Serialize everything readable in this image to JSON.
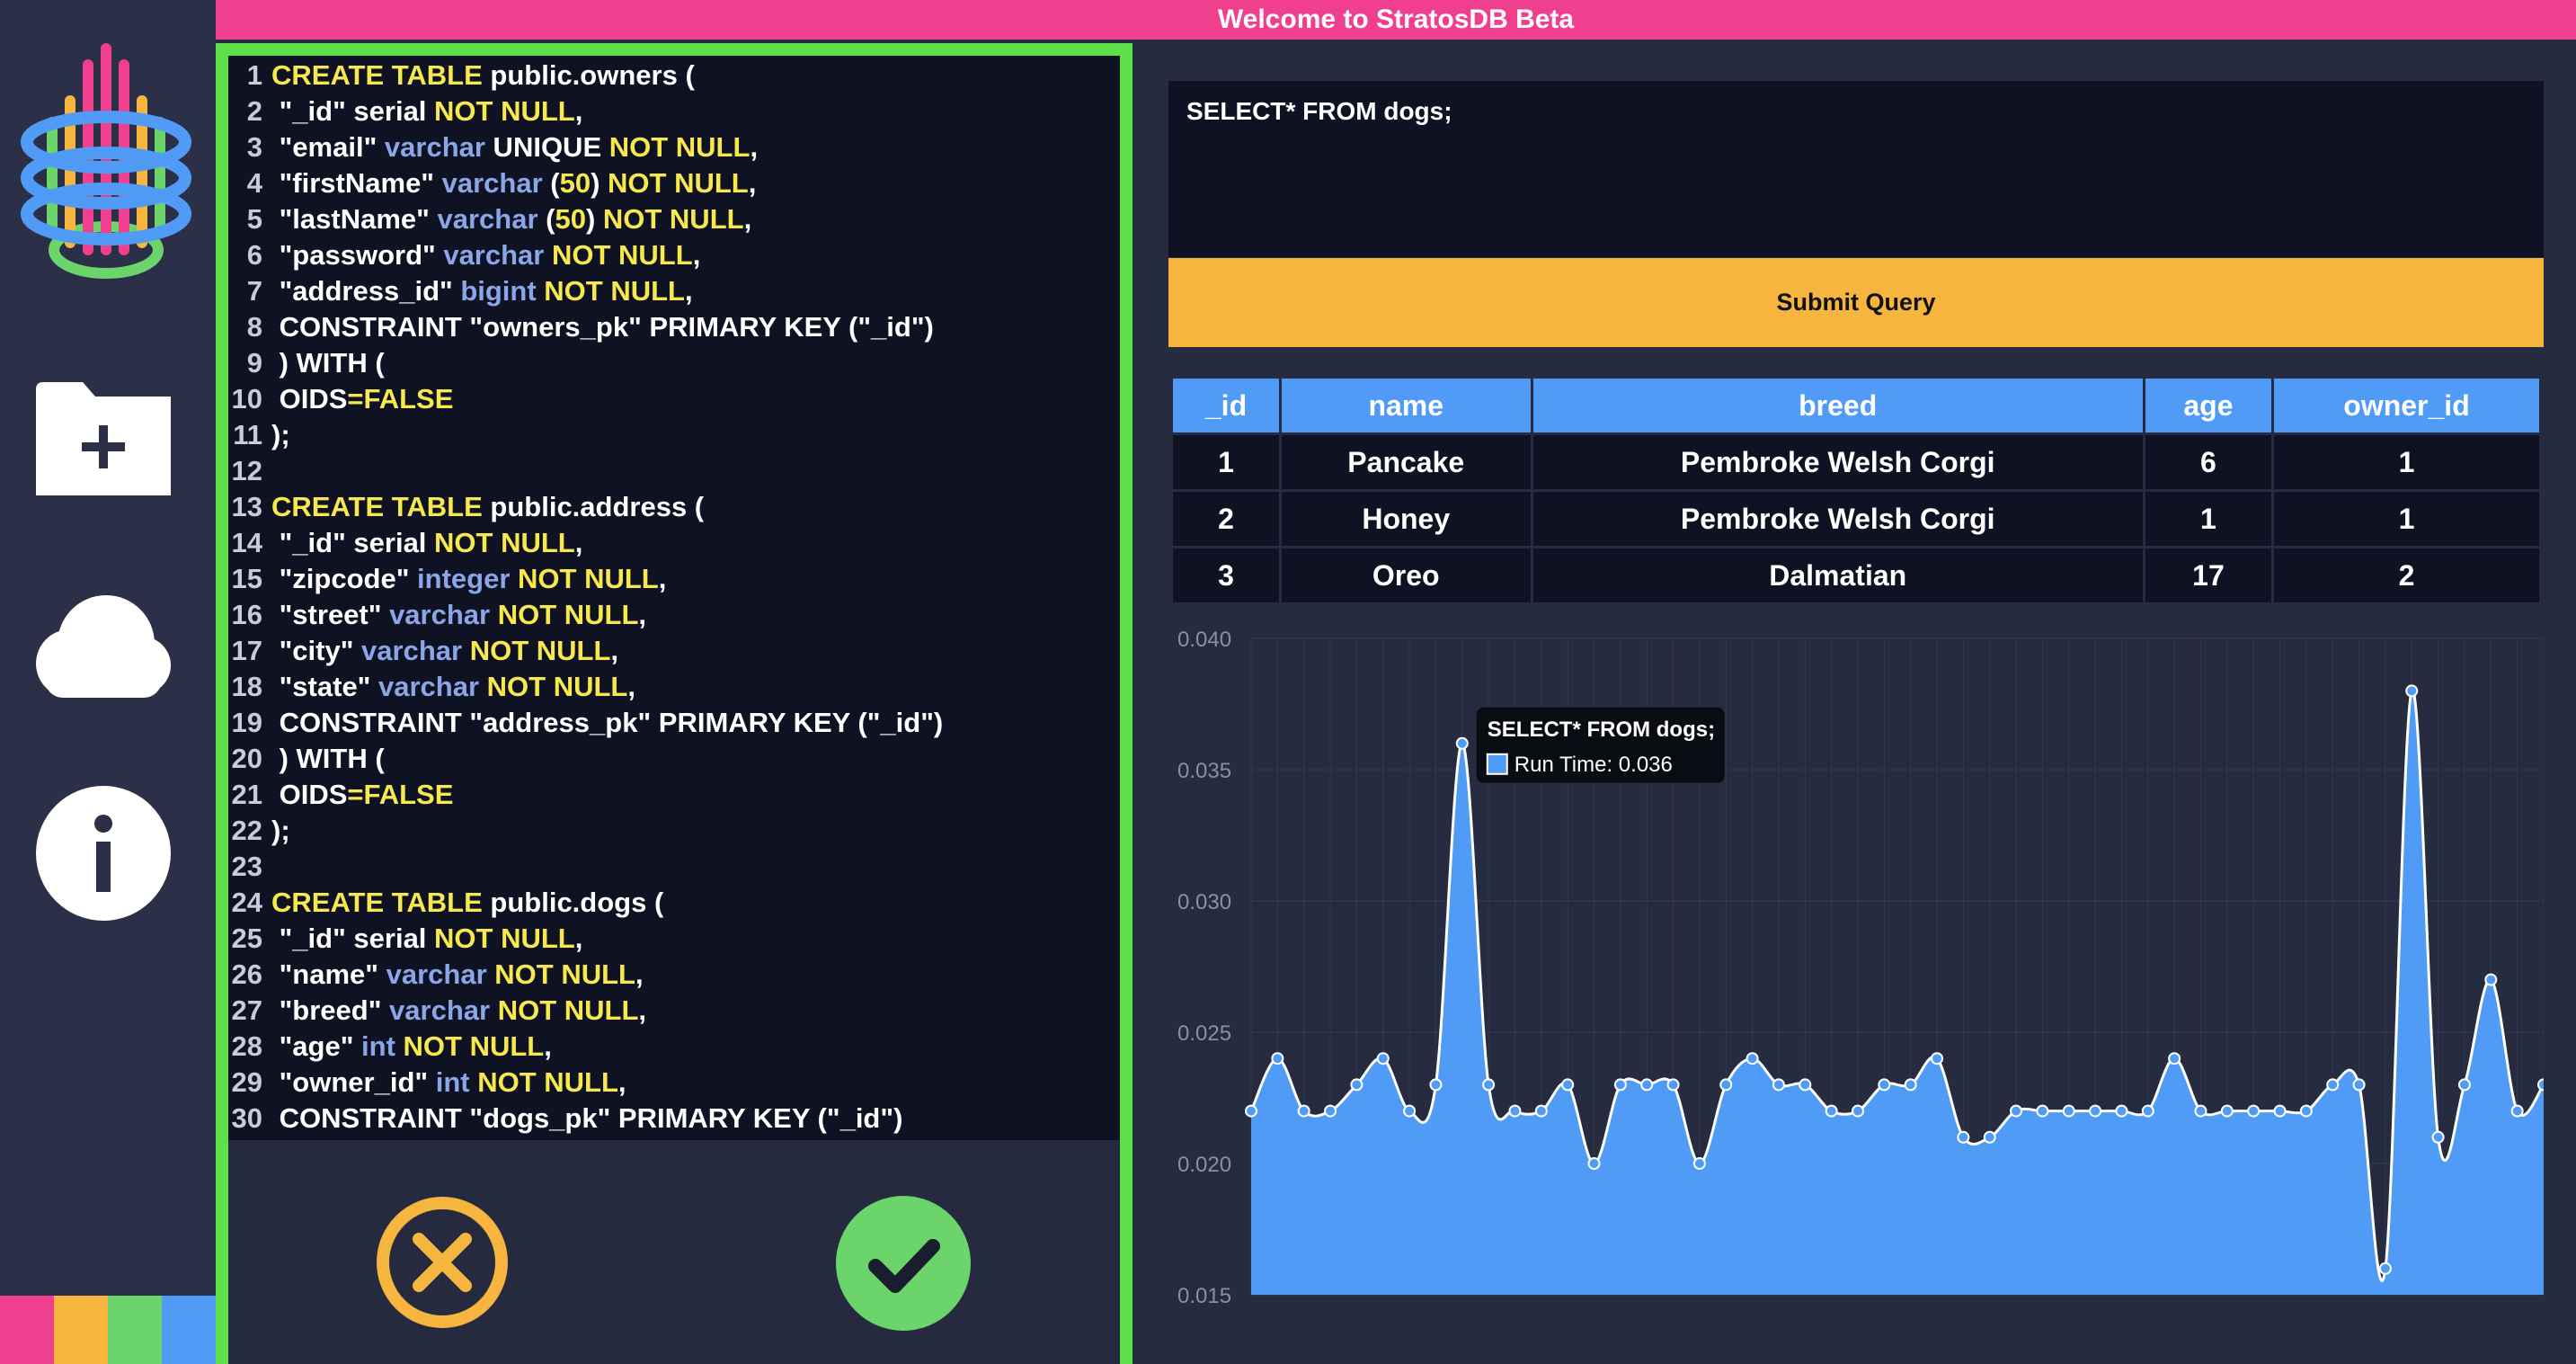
{
  "app": {
    "title": "Welcome to StratosDB Beta"
  },
  "sidebar": {
    "icons": [
      "stratosdb-logo",
      "new-folder-icon",
      "cloud-icon",
      "info-icon"
    ],
    "stripe_colors": [
      "#ef3f8e",
      "#f5b53f",
      "#6bd46b",
      "#4f9bf5"
    ]
  },
  "editor": {
    "lines": [
      [
        [
          "k",
          "CREATE TABLE"
        ],
        [
          "p",
          " public.owners ("
        ]
      ],
      [
        [
          "p",
          " \"_id\" serial "
        ],
        [
          "k",
          "NOT NULL"
        ],
        [
          "p",
          ","
        ]
      ],
      [
        [
          "p",
          " \"email\" "
        ],
        [
          "t",
          "varchar"
        ],
        [
          "p",
          " UNIQUE "
        ],
        [
          "k",
          "NOT NULL"
        ],
        [
          "p",
          ","
        ]
      ],
      [
        [
          "p",
          " \"firstName\" "
        ],
        [
          "t",
          "varchar"
        ],
        [
          "p",
          " ("
        ],
        [
          "k",
          "50"
        ],
        [
          "p",
          ") "
        ],
        [
          "k",
          "NOT NULL"
        ],
        [
          "p",
          ","
        ]
      ],
      [
        [
          "p",
          " \"lastName\" "
        ],
        [
          "t",
          "varchar"
        ],
        [
          "p",
          " ("
        ],
        [
          "k",
          "50"
        ],
        [
          "p",
          ") "
        ],
        [
          "k",
          "NOT NULL"
        ],
        [
          "p",
          ","
        ]
      ],
      [
        [
          "p",
          " \"password\" "
        ],
        [
          "t",
          "varchar"
        ],
        [
          "p",
          " "
        ],
        [
          "k",
          "NOT NULL"
        ],
        [
          "p",
          ","
        ]
      ],
      [
        [
          "p",
          " \"address_id\" "
        ],
        [
          "t",
          "bigint"
        ],
        [
          "p",
          " "
        ],
        [
          "k",
          "NOT NULL"
        ],
        [
          "p",
          ","
        ]
      ],
      [
        [
          "p",
          " CONSTRAINT \"owners_pk\" PRIMARY KEY (\"_id\")"
        ]
      ],
      [
        [
          "p",
          " ) WITH ("
        ]
      ],
      [
        [
          "p",
          " OIDS"
        ],
        [
          "k",
          "=FALSE"
        ]
      ],
      [
        [
          "p",
          ");"
        ]
      ],
      [
        [
          "p",
          ""
        ]
      ],
      [
        [
          "k",
          "CREATE TABLE"
        ],
        [
          "p",
          " public.address ("
        ]
      ],
      [
        [
          "p",
          " \"_id\" serial "
        ],
        [
          "k",
          "NOT NULL"
        ],
        [
          "p",
          ","
        ]
      ],
      [
        [
          "p",
          " \"zipcode\" "
        ],
        [
          "t",
          "integer"
        ],
        [
          "p",
          " "
        ],
        [
          "k",
          "NOT NULL"
        ],
        [
          "p",
          ","
        ]
      ],
      [
        [
          "p",
          " \"street\" "
        ],
        [
          "t",
          "varchar"
        ],
        [
          "p",
          " "
        ],
        [
          "k",
          "NOT NULL"
        ],
        [
          "p",
          ","
        ]
      ],
      [
        [
          "p",
          " \"city\" "
        ],
        [
          "t",
          "varchar"
        ],
        [
          "p",
          " "
        ],
        [
          "k",
          "NOT NULL"
        ],
        [
          "p",
          ","
        ]
      ],
      [
        [
          "p",
          " \"state\" "
        ],
        [
          "t",
          "varchar"
        ],
        [
          "p",
          " "
        ],
        [
          "k",
          "NOT NULL"
        ],
        [
          "p",
          ","
        ]
      ],
      [
        [
          "p",
          " CONSTRAINT \"address_pk\" PRIMARY KEY (\"_id\")"
        ]
      ],
      [
        [
          "p",
          " ) WITH ("
        ]
      ],
      [
        [
          "p",
          " OIDS"
        ],
        [
          "k",
          "=FALSE"
        ]
      ],
      [
        [
          "p",
          ");"
        ]
      ],
      [
        [
          "p",
          ""
        ]
      ],
      [
        [
          "k",
          "CREATE TABLE"
        ],
        [
          "p",
          " public.dogs ("
        ]
      ],
      [
        [
          "p",
          " \"_id\" serial "
        ],
        [
          "k",
          "NOT NULL"
        ],
        [
          "p",
          ","
        ]
      ],
      [
        [
          "p",
          " \"name\" "
        ],
        [
          "t",
          "varchar"
        ],
        [
          "p",
          " "
        ],
        [
          "k",
          "NOT NULL"
        ],
        [
          "p",
          ","
        ]
      ],
      [
        [
          "p",
          " \"breed\" "
        ],
        [
          "t",
          "varchar"
        ],
        [
          "p",
          " "
        ],
        [
          "k",
          "NOT NULL"
        ],
        [
          "p",
          ","
        ]
      ],
      [
        [
          "p",
          " \"age\" "
        ],
        [
          "t",
          "int"
        ],
        [
          "p",
          " "
        ],
        [
          "k",
          "NOT NULL"
        ],
        [
          "p",
          ","
        ]
      ],
      [
        [
          "p",
          " \"owner_id\" "
        ],
        [
          "t",
          "int"
        ],
        [
          "p",
          " "
        ],
        [
          "k",
          "NOT NULL"
        ],
        [
          "p",
          ","
        ]
      ],
      [
        [
          "p",
          " CONSTRAINT \"dogs_pk\" PRIMARY KEY (\"_id\")"
        ]
      ]
    ],
    "cancel_icon": "close-circle-icon",
    "confirm_icon": "checkmark-circle-icon"
  },
  "query": {
    "text": "SELECT* FROM dogs;",
    "submit_label": "Submit Query"
  },
  "results": {
    "columns": [
      "_id",
      "name",
      "breed",
      "age",
      "owner_id"
    ],
    "rows": [
      [
        "1",
        "Pancake",
        "Pembroke Welsh Corgi",
        "6",
        "1"
      ],
      [
        "2",
        "Honey",
        "Pembroke Welsh Corgi",
        "1",
        "1"
      ],
      [
        "3",
        "Oreo",
        "Dalmatian",
        "17",
        "2"
      ]
    ]
  },
  "colors": {
    "accent_pink": "#ef3f8e",
    "accent_yellow": "#f5b53f",
    "accent_green": "#5ee04a",
    "series_blue": "#4f9bf5"
  },
  "chart_data": {
    "type": "area",
    "title": "",
    "xlabel": "",
    "ylabel": "",
    "ylim": [
      0.015,
      0.04
    ],
    "yticks": [
      "0.040",
      "0.035",
      "0.030",
      "0.025",
      "0.020",
      "0.015"
    ],
    "grid": true,
    "series": [
      {
        "name": "Run Time",
        "values": [
          0.022,
          0.024,
          0.022,
          0.022,
          0.023,
          0.024,
          0.022,
          0.023,
          0.036,
          0.023,
          0.022,
          0.022,
          0.023,
          0.02,
          0.023,
          0.023,
          0.023,
          0.02,
          0.023,
          0.024,
          0.023,
          0.023,
          0.022,
          0.022,
          0.023,
          0.023,
          0.024,
          0.021,
          0.021,
          0.022,
          0.022,
          0.022,
          0.022,
          0.022,
          0.022,
          0.024,
          0.022,
          0.022,
          0.022,
          0.022,
          0.022,
          0.023,
          0.023,
          0.016,
          0.038,
          0.021,
          0.023,
          0.027,
          0.022,
          0.023
        ]
      }
    ],
    "tooltip": {
      "title": "SELECT* FROM dogs;",
      "label": "Run Time: 0.036",
      "point_index": 8
    }
  }
}
